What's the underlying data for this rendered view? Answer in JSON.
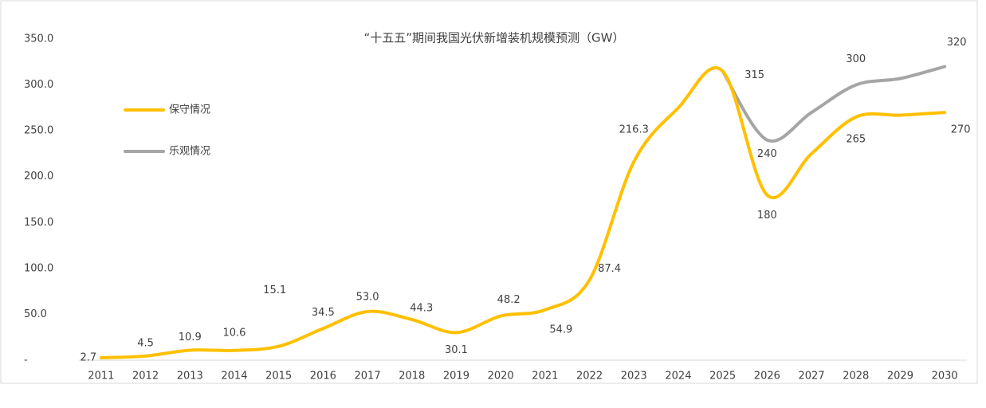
{
  "chart_data": {
    "type": "line",
    "title": "“十五五”期间我国光伏新增装机规模预测（GW）",
    "categories": [
      "2011",
      "2012",
      "2013",
      "2014",
      "2015",
      "2016",
      "2017",
      "2018",
      "2019",
      "2020",
      "2021",
      "2022",
      "2023",
      "2024",
      "2025",
      "2026",
      "2027",
      "2028",
      "2029",
      "2030"
    ],
    "series": [
      {
        "name": "保守情况",
        "color": "#FFC000",
        "values": [
          2.7,
          4.5,
          10.9,
          10.6,
          15.1,
          34.5,
          53.0,
          44.3,
          30.1,
          48.2,
          54.9,
          87.4,
          216.3,
          275,
          315,
          180,
          225,
          265,
          267,
          270
        ],
        "value_labels": [
          "2.7",
          "4.5",
          "10.9",
          "10.6",
          "15.1",
          "34.5",
          "53.0",
          "44.3",
          "30.1",
          "48.2",
          "54.9",
          "87.4",
          "216.3",
          null,
          "315",
          "180",
          null,
          "265",
          null,
          "270"
        ]
      },
      {
        "name": "乐观情况",
        "color": "#A5A5A5",
        "values": [
          null,
          null,
          null,
          null,
          null,
          null,
          null,
          null,
          null,
          null,
          null,
          null,
          null,
          null,
          315,
          240,
          270,
          300,
          307,
          320
        ],
        "value_labels": [
          null,
          null,
          null,
          null,
          null,
          null,
          null,
          null,
          null,
          null,
          null,
          null,
          null,
          null,
          null,
          "240",
          null,
          "300",
          null,
          "320"
        ]
      }
    ],
    "ylim": [
      0,
      350
    ],
    "yticks": [
      {
        "value": 0,
        "label": "-"
      },
      {
        "value": 50,
        "label": "50.0"
      },
      {
        "value": 100,
        "label": "100.0"
      },
      {
        "value": 150,
        "label": "150.0"
      },
      {
        "value": 200,
        "label": "200.0"
      },
      {
        "value": 250,
        "label": "250.0"
      },
      {
        "value": 300,
        "label": "300.0"
      },
      {
        "value": 350,
        "label": "350.0"
      }
    ],
    "grid": false,
    "legend": "left"
  }
}
